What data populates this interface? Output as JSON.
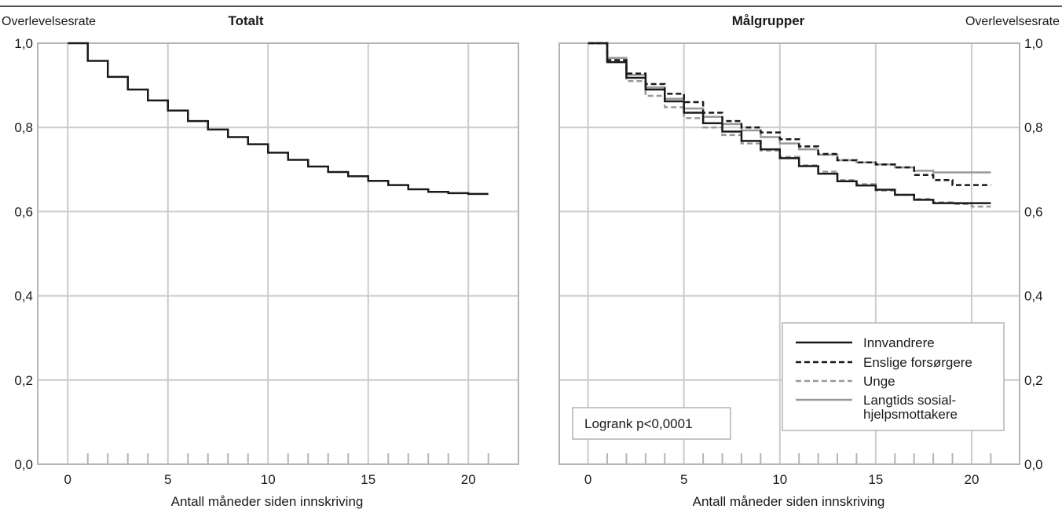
{
  "colors": {
    "grid": "#cccccc",
    "axis": "#b4b4b4",
    "text": "#1a1a1a",
    "innvandrere": "#1a1a1a",
    "enslige": "#1a1a1a",
    "unge": "#999999",
    "langtids": "#999999"
  },
  "chart_data": [
    {
      "type": "line",
      "step": true,
      "title": "Totalt",
      "ylabel": "Overlevelsesrate",
      "xlabel": "Antall måneder siden innskriving",
      "xlim": [
        -1.5,
        22.5
      ],
      "ylim": [
        0,
        1
      ],
      "xticks": [
        "0",
        "5",
        "10",
        "15",
        "20"
      ],
      "yticks": [
        "0,0",
        "0,2",
        "0,4",
        "0,6",
        "0,8",
        "1,0"
      ],
      "grid": true,
      "series": [
        {
          "style": "solid",
          "x": [
            0,
            1,
            2,
            3,
            4,
            5,
            6,
            7,
            8,
            9,
            10,
            11,
            12,
            13,
            14,
            15,
            16,
            17,
            18,
            19,
            20,
            21
          ],
          "values": [
            1.0,
            0.958,
            0.92,
            0.89,
            0.864,
            0.84,
            0.815,
            0.795,
            0.777,
            0.76,
            0.74,
            0.723,
            0.707,
            0.694,
            0.684,
            0.673,
            0.663,
            0.653,
            0.647,
            0.644,
            0.642,
            0.642
          ]
        }
      ]
    },
    {
      "type": "line",
      "step": true,
      "title": "Målgrupper",
      "ylabel": "Overlevelsesrate",
      "xlabel": "Antall måneder siden innskriving",
      "xlim": [
        -1.5,
        22.5
      ],
      "ylim": [
        0,
        1
      ],
      "xticks": [
        "0",
        "5",
        "10",
        "15",
        "20"
      ],
      "yticks": [
        "0,0",
        "0,2",
        "0,4",
        "0,6",
        "0,8",
        "1,0"
      ],
      "grid": true,
      "legend_position": "bottom-right",
      "annotation": "Logrank p<0,0001",
      "series": [
        {
          "name": "Innvandrere",
          "style": "solid",
          "color_key": "innvandrere",
          "x": [
            0,
            1,
            2,
            3,
            4,
            5,
            6,
            7,
            8,
            9,
            10,
            11,
            12,
            13,
            14,
            15,
            16,
            17,
            18,
            19,
            20,
            21
          ],
          "values": [
            1.0,
            0.955,
            0.918,
            0.89,
            0.862,
            0.835,
            0.81,
            0.79,
            0.768,
            0.748,
            0.727,
            0.708,
            0.69,
            0.672,
            0.662,
            0.652,
            0.64,
            0.628,
            0.62,
            0.62,
            0.62,
            0.62
          ]
        },
        {
          "name": "Enslige forsørgere",
          "style": "dashed",
          "color_key": "enslige",
          "x": [
            0,
            1,
            2,
            3,
            4,
            5,
            6,
            7,
            8,
            9,
            10,
            11,
            12,
            13,
            14,
            15,
            16,
            17,
            18,
            19,
            20,
            21
          ],
          "values": [
            1.0,
            0.96,
            0.928,
            0.903,
            0.88,
            0.86,
            0.835,
            0.815,
            0.8,
            0.788,
            0.772,
            0.755,
            0.737,
            0.722,
            0.717,
            0.712,
            0.705,
            0.687,
            0.675,
            0.663,
            0.663,
            0.663
          ]
        },
        {
          "name": "Unge",
          "style": "dashed",
          "color_key": "unge",
          "x": [
            0,
            1,
            2,
            3,
            4,
            5,
            6,
            7,
            8,
            9,
            10,
            11,
            12,
            13,
            14,
            15,
            16,
            17,
            18,
            19,
            20,
            21
          ],
          "values": [
            1.0,
            0.96,
            0.91,
            0.875,
            0.848,
            0.822,
            0.8,
            0.782,
            0.762,
            0.745,
            0.73,
            0.71,
            0.695,
            0.675,
            0.665,
            0.65,
            0.64,
            0.63,
            0.622,
            0.618,
            0.612,
            0.612
          ]
        },
        {
          "name": "Langtids sosial-hjelpsmottakere",
          "label_lines": [
            "Langtids sosial-",
            "hjelpsmottakere"
          ],
          "style": "solid",
          "color_key": "langtids",
          "x": [
            0,
            1,
            2,
            3,
            4,
            5,
            6,
            7,
            8,
            9,
            10,
            11,
            12,
            13,
            14,
            15,
            16,
            17,
            18,
            19,
            20,
            21
          ],
          "values": [
            1.0,
            0.965,
            0.925,
            0.895,
            0.868,
            0.845,
            0.825,
            0.808,
            0.793,
            0.777,
            0.762,
            0.748,
            0.735,
            0.722,
            0.717,
            0.712,
            0.705,
            0.697,
            0.693,
            0.693,
            0.693,
            0.693
          ]
        }
      ]
    }
  ]
}
